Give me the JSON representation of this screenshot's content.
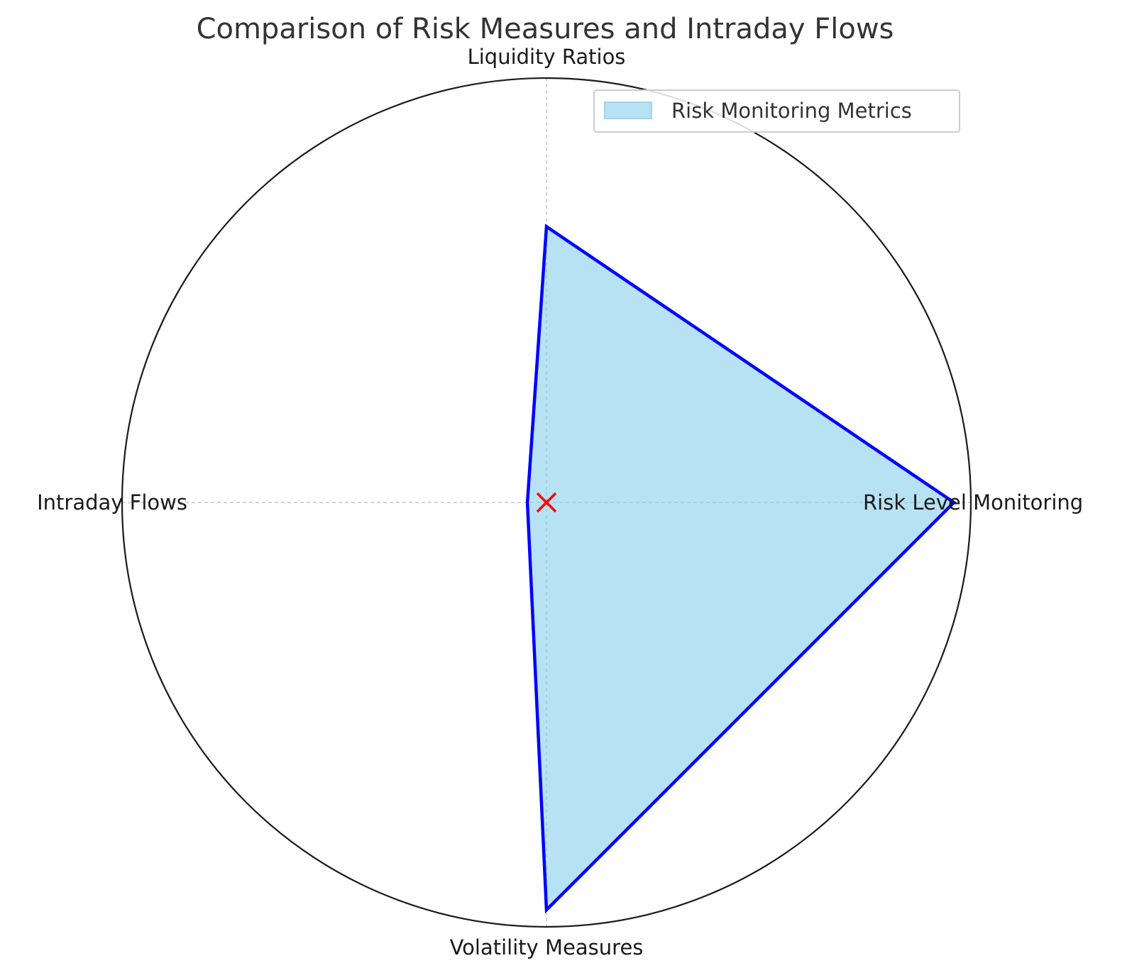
{
  "chart_data": {
    "type": "radar",
    "title": "Comparison of Risk Measures and Intraday Flows",
    "categories": [
      "Risk Level Monitoring",
      "Liquidity Ratios",
      "Intraday Flows",
      "Volatility Measures"
    ],
    "series": [
      {
        "name": "Risk Monitoring Metrics",
        "values": [
          0.96,
          0.65,
          0.045,
          0.96
        ],
        "line_color": "#0000ff",
        "fill_color": "#87ceeb"
      }
    ],
    "rlim": [
      0,
      1
    ],
    "grid": true,
    "legend_position": "top-right",
    "center_marker": {
      "symbol": "x",
      "color": "#ff0000"
    }
  }
}
